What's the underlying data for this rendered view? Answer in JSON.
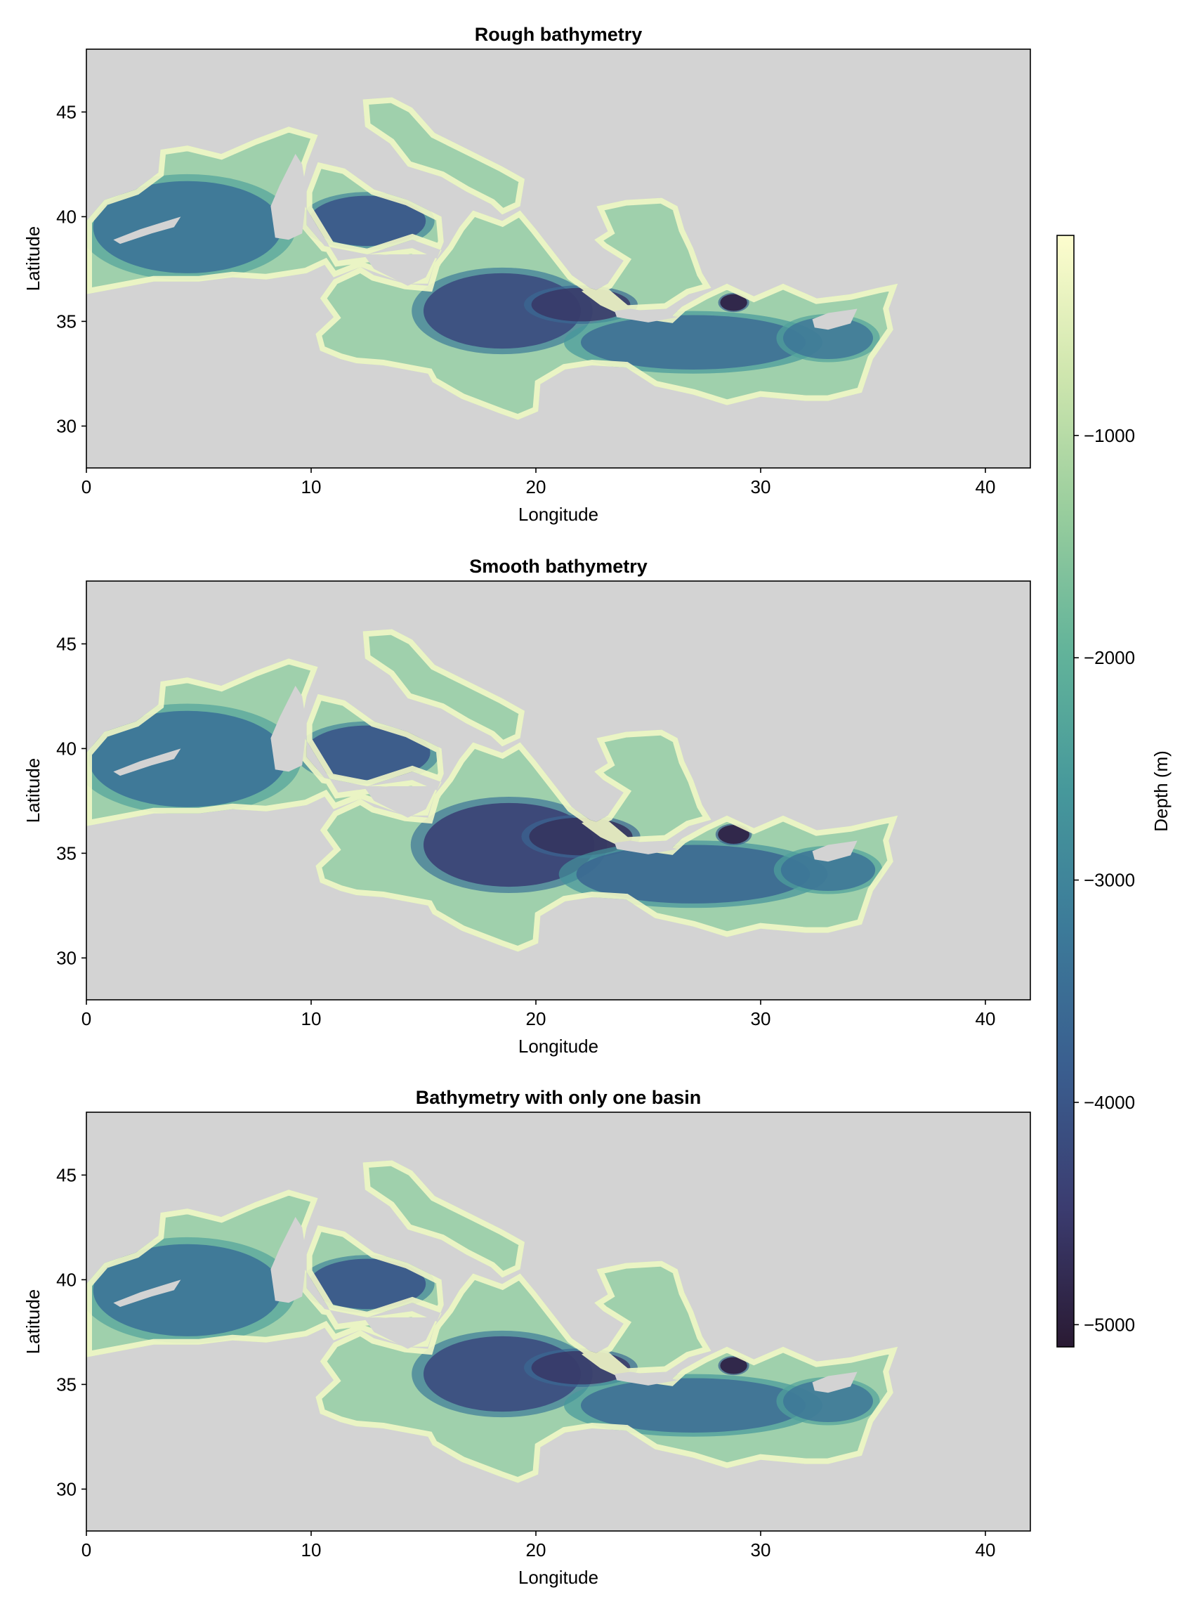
{
  "chart_data": [
    {
      "type": "heatmap",
      "title": "Rough bathymetry",
      "xlabel": "Longitude",
      "ylabel": "Latitude",
      "xlim": [
        0,
        42
      ],
      "ylim": [
        28,
        48
      ],
      "xticks": [
        "0",
        "10",
        "20",
        "30",
        "40"
      ],
      "yticks": [
        "30",
        "35",
        "40",
        "45"
      ],
      "background": "#d3d3d3",
      "note_values": "Depth field (m) of the Mediterranean Sea; land/outside shown in light gray"
    },
    {
      "type": "heatmap",
      "title": "Smooth bathymetry",
      "xlabel": "Longitude",
      "ylabel": "Latitude",
      "xlim": [
        0,
        42
      ],
      "ylim": [
        28,
        48
      ],
      "xticks": [
        "0",
        "10",
        "20",
        "30",
        "40"
      ],
      "yticks": [
        "30",
        "35",
        "40",
        "45"
      ],
      "background": "#d3d3d3"
    },
    {
      "type": "heatmap",
      "title": "Bathymetry with only one basin",
      "xlabel": "Longitude",
      "ylabel": "Latitude",
      "xlim": [
        0,
        42
      ],
      "ylim": [
        28,
        48
      ],
      "xticks": [
        "0",
        "10",
        "20",
        "30",
        "40"
      ],
      "yticks": [
        "30",
        "35",
        "40",
        "45"
      ],
      "background": "#d3d3d3"
    }
  ],
  "colorbar": {
    "label": "Depth (m)",
    "range": [
      -5100,
      -100
    ],
    "ticks": [
      {
        "value": -1000,
        "label": "−1000"
      },
      {
        "value": -2000,
        "label": "−2000"
      },
      {
        "value": -3000,
        "label": "−3000"
      },
      {
        "value": -4000,
        "label": "−4000"
      },
      {
        "value": -5000,
        "label": "−5000"
      }
    ],
    "colors": [
      "#2a1a33",
      "#3b3c70",
      "#3a5e8f",
      "#3c7a99",
      "#46989b",
      "#62b39a",
      "#98cd9d",
      "#cfe6ae",
      "#fdfdce"
    ]
  }
}
